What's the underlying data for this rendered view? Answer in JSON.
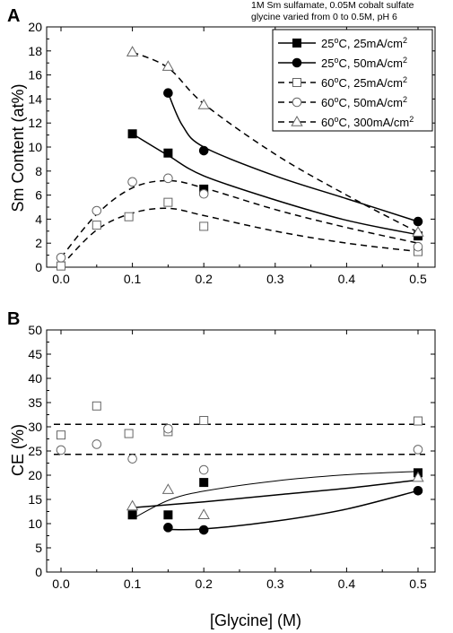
{
  "figure": {
    "note": [
      "1M Sm sulfamate, 0.05M cobalt sulfate",
      "glycine varied from 0 to 0.5M, pH 6"
    ],
    "xlabel": "[Glycine] (M)"
  },
  "series_styles": [
    {
      "marker": "square",
      "filled": true,
      "dashed": false
    },
    {
      "marker": "circle",
      "filled": true,
      "dashed": false
    },
    {
      "marker": "square",
      "filled": false,
      "dashed": true
    },
    {
      "marker": "circle",
      "filled": false,
      "dashed": true
    },
    {
      "marker": "triangle",
      "filled": false,
      "dashed": true
    }
  ],
  "chart_data": [
    {
      "type": "scatter",
      "panel": "A",
      "ylabel": "Sm Content (at%)",
      "xlim": [
        -0.02,
        0.52
      ],
      "ylim": [
        0,
        20
      ],
      "xticks": [
        "0.0",
        "0.1",
        "0.2",
        "0.3",
        "0.4",
        "0.5"
      ],
      "yticks": [
        "0",
        "2",
        "4",
        "6",
        "8",
        "10",
        "12",
        "14",
        "16",
        "18",
        "20"
      ],
      "legend_position": "top-right",
      "series": [
        {
          "name": "25°C,  25mA/cm²",
          "label_main": "25",
          "label_sup1": "o",
          "label_rest": "C,  25mA/cm",
          "label_sup2": "2",
          "points": [
            [
              0.1,
              11.1
            ],
            [
              0.15,
              9.5
            ],
            [
              0.2,
              6.5
            ],
            [
              0.5,
              2.6
            ]
          ],
          "fit": [
            [
              0.1,
              11.1
            ],
            [
              0.15,
              9.3
            ],
            [
              0.2,
              7.6
            ],
            [
              0.3,
              5.6
            ],
            [
              0.4,
              3.9
            ],
            [
              0.5,
              2.7
            ]
          ]
        },
        {
          "name": "25°C,  50mA/cm²",
          "label_main": "25",
          "label_sup1": "o",
          "label_rest": "C,  50mA/cm",
          "label_sup2": "2",
          "points": [
            [
              0.15,
              14.5
            ],
            [
              0.2,
              9.7
            ],
            [
              0.5,
              3.8
            ]
          ],
          "fit": [
            [
              0.15,
              14.5
            ],
            [
              0.17,
              11.8
            ],
            [
              0.2,
              10.0
            ],
            [
              0.3,
              7.6
            ],
            [
              0.4,
              5.7
            ],
            [
              0.5,
              3.8
            ]
          ]
        },
        {
          "name": "60°C,  25mA/cm²",
          "label_main": "60",
          "label_sup1": "o",
          "label_rest": "C,  25mA/cm",
          "label_sup2": "2",
          "points": [
            [
              0.0,
              0.1
            ],
            [
              0.05,
              3.5
            ],
            [
              0.095,
              4.2
            ],
            [
              0.15,
              5.4
            ],
            [
              0.2,
              3.4
            ],
            [
              0.5,
              1.3
            ]
          ],
          "fit": [
            [
              0.0,
              0.1
            ],
            [
              0.05,
              3.1
            ],
            [
              0.1,
              4.5
            ],
            [
              0.15,
              4.9
            ],
            [
              0.2,
              4.3
            ],
            [
              0.3,
              3.0
            ],
            [
              0.4,
              2.0
            ],
            [
              0.5,
              1.3
            ]
          ]
        },
        {
          "name": "60°C,  50mA/cm²",
          "label_main": "60",
          "label_sup1": "o",
          "label_rest": "C,  50mA/cm",
          "label_sup2": "2",
          "points": [
            [
              0.0,
              0.8
            ],
            [
              0.05,
              4.7
            ],
            [
              0.1,
              7.1
            ],
            [
              0.15,
              7.4
            ],
            [
              0.2,
              6.1
            ],
            [
              0.5,
              1.7
            ]
          ],
          "fit": [
            [
              0.0,
              0.8
            ],
            [
              0.05,
              4.4
            ],
            [
              0.1,
              6.6
            ],
            [
              0.15,
              7.2
            ],
            [
              0.2,
              6.6
            ],
            [
              0.3,
              4.8
            ],
            [
              0.4,
              3.3
            ],
            [
              0.5,
              2.0
            ]
          ]
        },
        {
          "name": "60°C,  300mA/cm²",
          "label_main": "60",
          "label_sup1": "o",
          "label_rest": "C,  300mA/cm",
          "label_sup2": "2",
          "points": [
            [
              0.1,
              17.9
            ],
            [
              0.15,
              16.7
            ],
            [
              0.2,
              13.5
            ],
            [
              0.5,
              2.9
            ]
          ],
          "fit": [
            [
              0.1,
              17.9
            ],
            [
              0.15,
              16.6
            ],
            [
              0.2,
              13.6
            ],
            [
              0.3,
              9.4
            ],
            [
              0.4,
              6.0
            ],
            [
              0.5,
              2.9
            ]
          ]
        }
      ]
    },
    {
      "type": "scatter",
      "panel": "B",
      "ylabel": "CE (%)",
      "xlim": [
        -0.02,
        0.52
      ],
      "ylim": [
        0,
        50
      ],
      "xticks": [
        "0.0",
        "0.1",
        "0.2",
        "0.3",
        "0.4",
        "0.5"
      ],
      "yticks": [
        "0",
        "5",
        "10",
        "15",
        "20",
        "25",
        "30",
        "35",
        "40",
        "45",
        "50"
      ],
      "series": [
        {
          "style": 0,
          "points": [
            [
              0.1,
              11.8
            ],
            [
              0.15,
              11.8
            ],
            [
              0.2,
              18.5
            ],
            [
              0.5,
              20.5
            ]
          ],
          "fit": [
            [
              0.1,
              13.3
            ],
            [
              0.2,
              14.5
            ],
            [
              0.3,
              15.9
            ],
            [
              0.4,
              17.3
            ],
            [
              0.5,
              19.0
            ]
          ]
        },
        {
          "style": 1,
          "points": [
            [
              0.15,
              9.2
            ],
            [
              0.2,
              8.7
            ],
            [
              0.5,
              16.8
            ]
          ],
          "fit": [
            [
              0.15,
              8.8
            ],
            [
              0.2,
              8.9
            ],
            [
              0.3,
              10.5
            ],
            [
              0.4,
              13.0
            ],
            [
              0.5,
              16.8
            ]
          ]
        },
        {
          "style": 2,
          "points": [
            [
              0.0,
              28.3
            ],
            [
              0.05,
              34.3
            ],
            [
              0.095,
              28.6
            ],
            [
              0.15,
              29.0
            ],
            [
              0.2,
              31.3
            ],
            [
              0.5,
              31.2
            ]
          ],
          "fit": [
            [
              -0.01,
              30.5
            ],
            [
              0.51,
              30.5
            ]
          ]
        },
        {
          "style": 3,
          "points": [
            [
              0.0,
              25.2
            ],
            [
              0.05,
              26.4
            ],
            [
              0.1,
              23.4
            ],
            [
              0.15,
              29.6
            ],
            [
              0.2,
              21.1
            ],
            [
              0.5,
              25.3
            ]
          ],
          "fit": [
            [
              -0.01,
              24.3
            ],
            [
              0.51,
              24.3
            ]
          ]
        },
        {
          "style": 4,
          "points": [
            [
              0.1,
              13.6
            ],
            [
              0.15,
              17.0
            ],
            [
              0.2,
              11.8
            ],
            [
              0.5,
              19.5
            ]
          ],
          "fit": [
            [
              0.1,
              11.0
            ],
            [
              0.15,
              14.8
            ],
            [
              0.2,
              16.7
            ],
            [
              0.3,
              18.8
            ],
            [
              0.4,
              20.1
            ],
            [
              0.5,
              20.8
            ]
          ],
          "thin_solid_fit": true
        }
      ]
    }
  ]
}
